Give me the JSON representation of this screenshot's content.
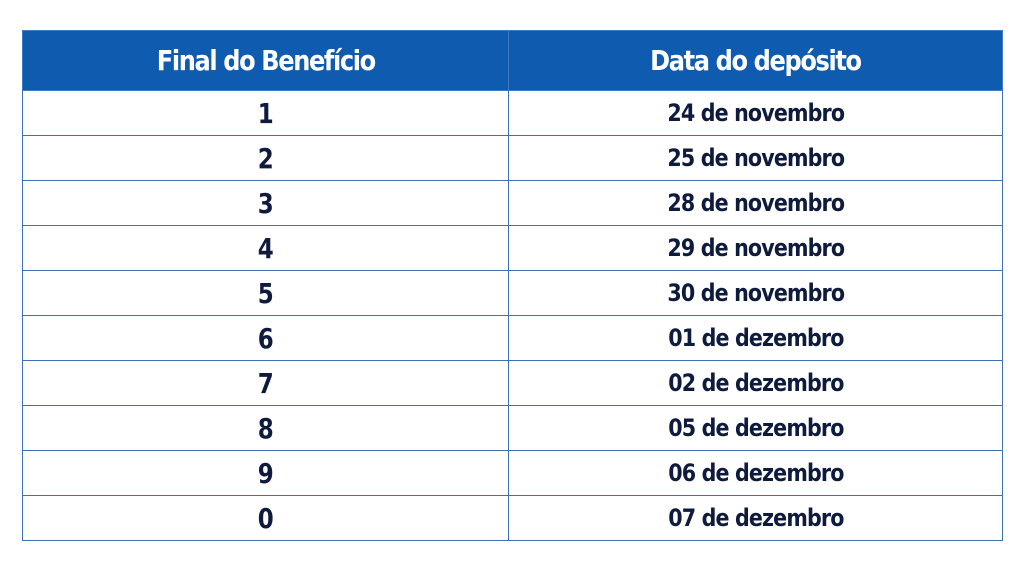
{
  "table": {
    "headers": {
      "col1": "Final do Benefício",
      "col2": "Data do depósito"
    },
    "rows": [
      {
        "final": "1",
        "date": "24 de novembro"
      },
      {
        "final": "2",
        "date": "25 de novembro"
      },
      {
        "final": "3",
        "date": "28 de novembro"
      },
      {
        "final": "4",
        "date": "29 de novembro"
      },
      {
        "final": "5",
        "date": "30 de novembro"
      },
      {
        "final": "6",
        "date": "01 de dezembro"
      },
      {
        "final": "7",
        "date": "02 de dezembro"
      },
      {
        "final": "8",
        "date": "05 de dezembro"
      },
      {
        "final": "9",
        "date": "06 de dezembro"
      },
      {
        "final": "0",
        "date": "07 de dezembro"
      }
    ]
  },
  "colors": {
    "header_background": "#0f5bb0",
    "header_text": "#ffffff",
    "body_text": "#0f1b3d",
    "grid_lines": "#3f6fb5"
  }
}
